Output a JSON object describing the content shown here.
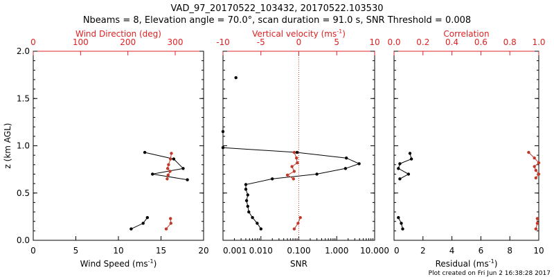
{
  "title_line1": "VAD_97_20170522_103432, 20170522.103530",
  "title_line2": "Nbeams = 8, Elevation angle = 70.0°, scan duration = 91.0 s, SNR Threshold = 0.008",
  "footer": "Plot created on Fri Jun  2 16:38:28 2017",
  "colors": {
    "black": "#000000",
    "red": "#c0392b",
    "axis_red": "#e02020"
  },
  "chart_data": [
    {
      "type": "scatter",
      "ylabel": "z (km AGL)",
      "ylim": [
        0.0,
        2.0
      ],
      "yticks": [
        "0.0",
        "0.5",
        "1.0",
        "1.5",
        "2.0"
      ],
      "bottom": {
        "label": "Wind Speed (ms",
        "label_sup": "-1",
        "label_tail": ")",
        "lim": [
          0,
          20
        ],
        "ticks": [
          "0",
          "5",
          "10",
          "15",
          "20"
        ]
      },
      "top": {
        "label": "Wind Direction (deg)",
        "lim": [
          0,
          360
        ],
        "ticks": [
          "0",
          "100",
          "200",
          "300"
        ]
      },
      "series": [
        {
          "axis": "bottom",
          "color": "black",
          "segments": [
            [
              [
                13.1,
                0.93
              ],
              [
                16.5,
                0.86
              ],
              [
                17.6,
                0.76
              ],
              [
                14.0,
                0.7
              ],
              [
                18.1,
                0.64
              ]
            ],
            [
              [
                13.4,
                0.24
              ],
              [
                12.9,
                0.18
              ],
              [
                11.5,
                0.12
              ]
            ]
          ]
        },
        {
          "axis": "top",
          "color": "red",
          "segments": [
            [
              [
                292,
                0.92
              ],
              [
                290,
                0.86
              ],
              [
                286,
                0.8
              ],
              [
                284,
                0.76
              ],
              [
                289,
                0.73
              ],
              [
                285,
                0.69
              ],
              [
                283,
                0.65
              ]
            ],
            [
              [
                290,
                0.23
              ],
              [
                291,
                0.18
              ],
              [
                281,
                0.12
              ]
            ]
          ]
        }
      ]
    },
    {
      "type": "scatter",
      "bottom": {
        "label": "SNR",
        "scale": "log",
        "lim": [
          0.001,
          10.0
        ],
        "ticks": [
          "0.001",
          "0.010",
          "0.100",
          "1.000",
          "10.000"
        ]
      },
      "top": {
        "label": "Vertical velocity (ms",
        "label_sup": "-1",
        "label_tail": ")",
        "lim": [
          -10,
          10
        ],
        "ticks": [
          "-10",
          "-5",
          "0",
          "5",
          "10"
        ],
        "ref_line": 0
      },
      "series": [
        {
          "axis": "bottom",
          "color": "black",
          "segments": [
            [
              [
                0.0022,
                1.72
              ]
            ],
            [
              [
                0.001,
                1.15
              ]
            ],
            [
              [
                0.001,
                0.98
              ],
              [
                0.09,
                0.93
              ],
              [
                1.8,
                0.87
              ],
              [
                3.9,
                0.81
              ],
              [
                1.7,
                0.76
              ],
              [
                0.3,
                0.7
              ],
              [
                0.02,
                0.65
              ],
              [
                0.004,
                0.59
              ],
              [
                0.004,
                0.54
              ],
              [
                0.0045,
                0.48
              ],
              [
                0.0042,
                0.42
              ],
              [
                0.0045,
                0.36
              ],
              [
                0.0048,
                0.3
              ],
              [
                0.006,
                0.24
              ],
              [
                0.008,
                0.18
              ],
              [
                0.01,
                0.12
              ]
            ]
          ]
        },
        {
          "axis": "top",
          "color": "red",
          "segments": [
            [
              [
                -0.6,
                0.93
              ],
              [
                -0.3,
                0.87
              ],
              [
                -0.2,
                0.82
              ],
              [
                -0.9,
                0.78
              ],
              [
                -0.6,
                0.73
              ],
              [
                -1.5,
                0.69
              ],
              [
                -0.7,
                0.65
              ]
            ],
            [
              [
                0.2,
                0.24
              ],
              [
                -0.1,
                0.18
              ],
              [
                -0.6,
                0.12
              ]
            ]
          ]
        }
      ]
    },
    {
      "type": "scatter",
      "bottom": {
        "label": "Residual (ms",
        "label_sup": "-1",
        "label_tail": ")",
        "lim": [
          0,
          10
        ],
        "ticks": [
          "0",
          "2",
          "4",
          "6",
          "8",
          "10"
        ]
      },
      "top": {
        "label": "Correlation",
        "lim": [
          0.0,
          1.0
        ],
        "ticks": [
          "0.0",
          "0.2",
          "0.4",
          "0.6",
          "0.8",
          "1.0"
        ]
      },
      "series": [
        {
          "axis": "bottom",
          "color": "black",
          "segments": [
            [
              [
                1.1,
                0.92
              ],
              [
                1.2,
                0.86
              ],
              [
                0.4,
                0.81
              ],
              [
                0.3,
                0.76
              ],
              [
                1.0,
                0.7
              ],
              [
                0.4,
                0.65
              ]
            ],
            [
              [
                0.3,
                0.24
              ],
              [
                0.5,
                0.18
              ],
              [
                0.6,
                0.12
              ]
            ]
          ]
        },
        {
          "axis": "top",
          "color": "red",
          "segments": [
            [
              [
                0.93,
                0.93
              ],
              [
                0.97,
                0.87
              ],
              [
                1.0,
                0.82
              ],
              [
                0.97,
                0.78
              ],
              [
                0.98,
                0.74
              ],
              [
                1.0,
                0.7
              ],
              [
                0.98,
                0.66
              ]
            ],
            [
              [
                0.99,
                0.23
              ],
              [
                0.99,
                0.18
              ],
              [
                0.98,
                0.12
              ]
            ]
          ]
        }
      ]
    }
  ]
}
